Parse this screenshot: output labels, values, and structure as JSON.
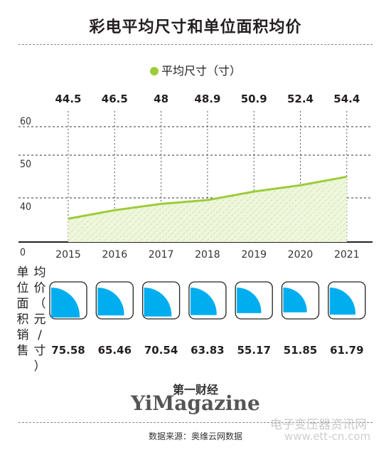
{
  "title": "彩电平均尺寸和单位面积均价",
  "legend_label": "平均尺寸（寸）",
  "price_label_col1": "单位面积销售",
  "price_label_col2": "均价（元/寸）",
  "footer_cn": "第一财经",
  "footer_en": "YiMagazine",
  "source": "数据来源：奥维云网数据",
  "watermark": "电子变压器资讯网",
  "watermark_url": "www.ett-cn.com",
  "colors": {
    "line": "#9dcc3a",
    "fill": "#e6f2cc",
    "quarter": "#00aeef",
    "text": "#231f20"
  },
  "chart_data": [
    {
      "type": "line",
      "x": [
        "2015",
        "2016",
        "2017",
        "2018",
        "2019",
        "2020",
        "2021"
      ],
      "series": [
        {
          "name": "平均尺寸（寸）",
          "values": [
            44.5,
            46.5,
            48,
            48.9,
            50.9,
            52.4,
            54.4
          ]
        }
      ],
      "value_labels": [
        "44.5",
        "46.5",
        "48",
        "48.9",
        "50.9",
        "52.4",
        "54.4"
      ],
      "y_ticks": [
        "60",
        "50",
        "40",
        "0"
      ],
      "ylim": [
        0,
        60
      ],
      "grid": true,
      "area_fill": "hatched"
    },
    {
      "type": "table",
      "x": [
        "2015",
        "2016",
        "2017",
        "2018",
        "2019",
        "2020",
        "2021"
      ],
      "values": [
        75.58,
        65.46,
        70.54,
        63.83,
        55.17,
        51.85,
        61.79
      ],
      "value_labels": [
        "75.58",
        "65.46",
        "70.54",
        "63.83",
        "55.17",
        "51.85",
        "61.79"
      ]
    }
  ]
}
